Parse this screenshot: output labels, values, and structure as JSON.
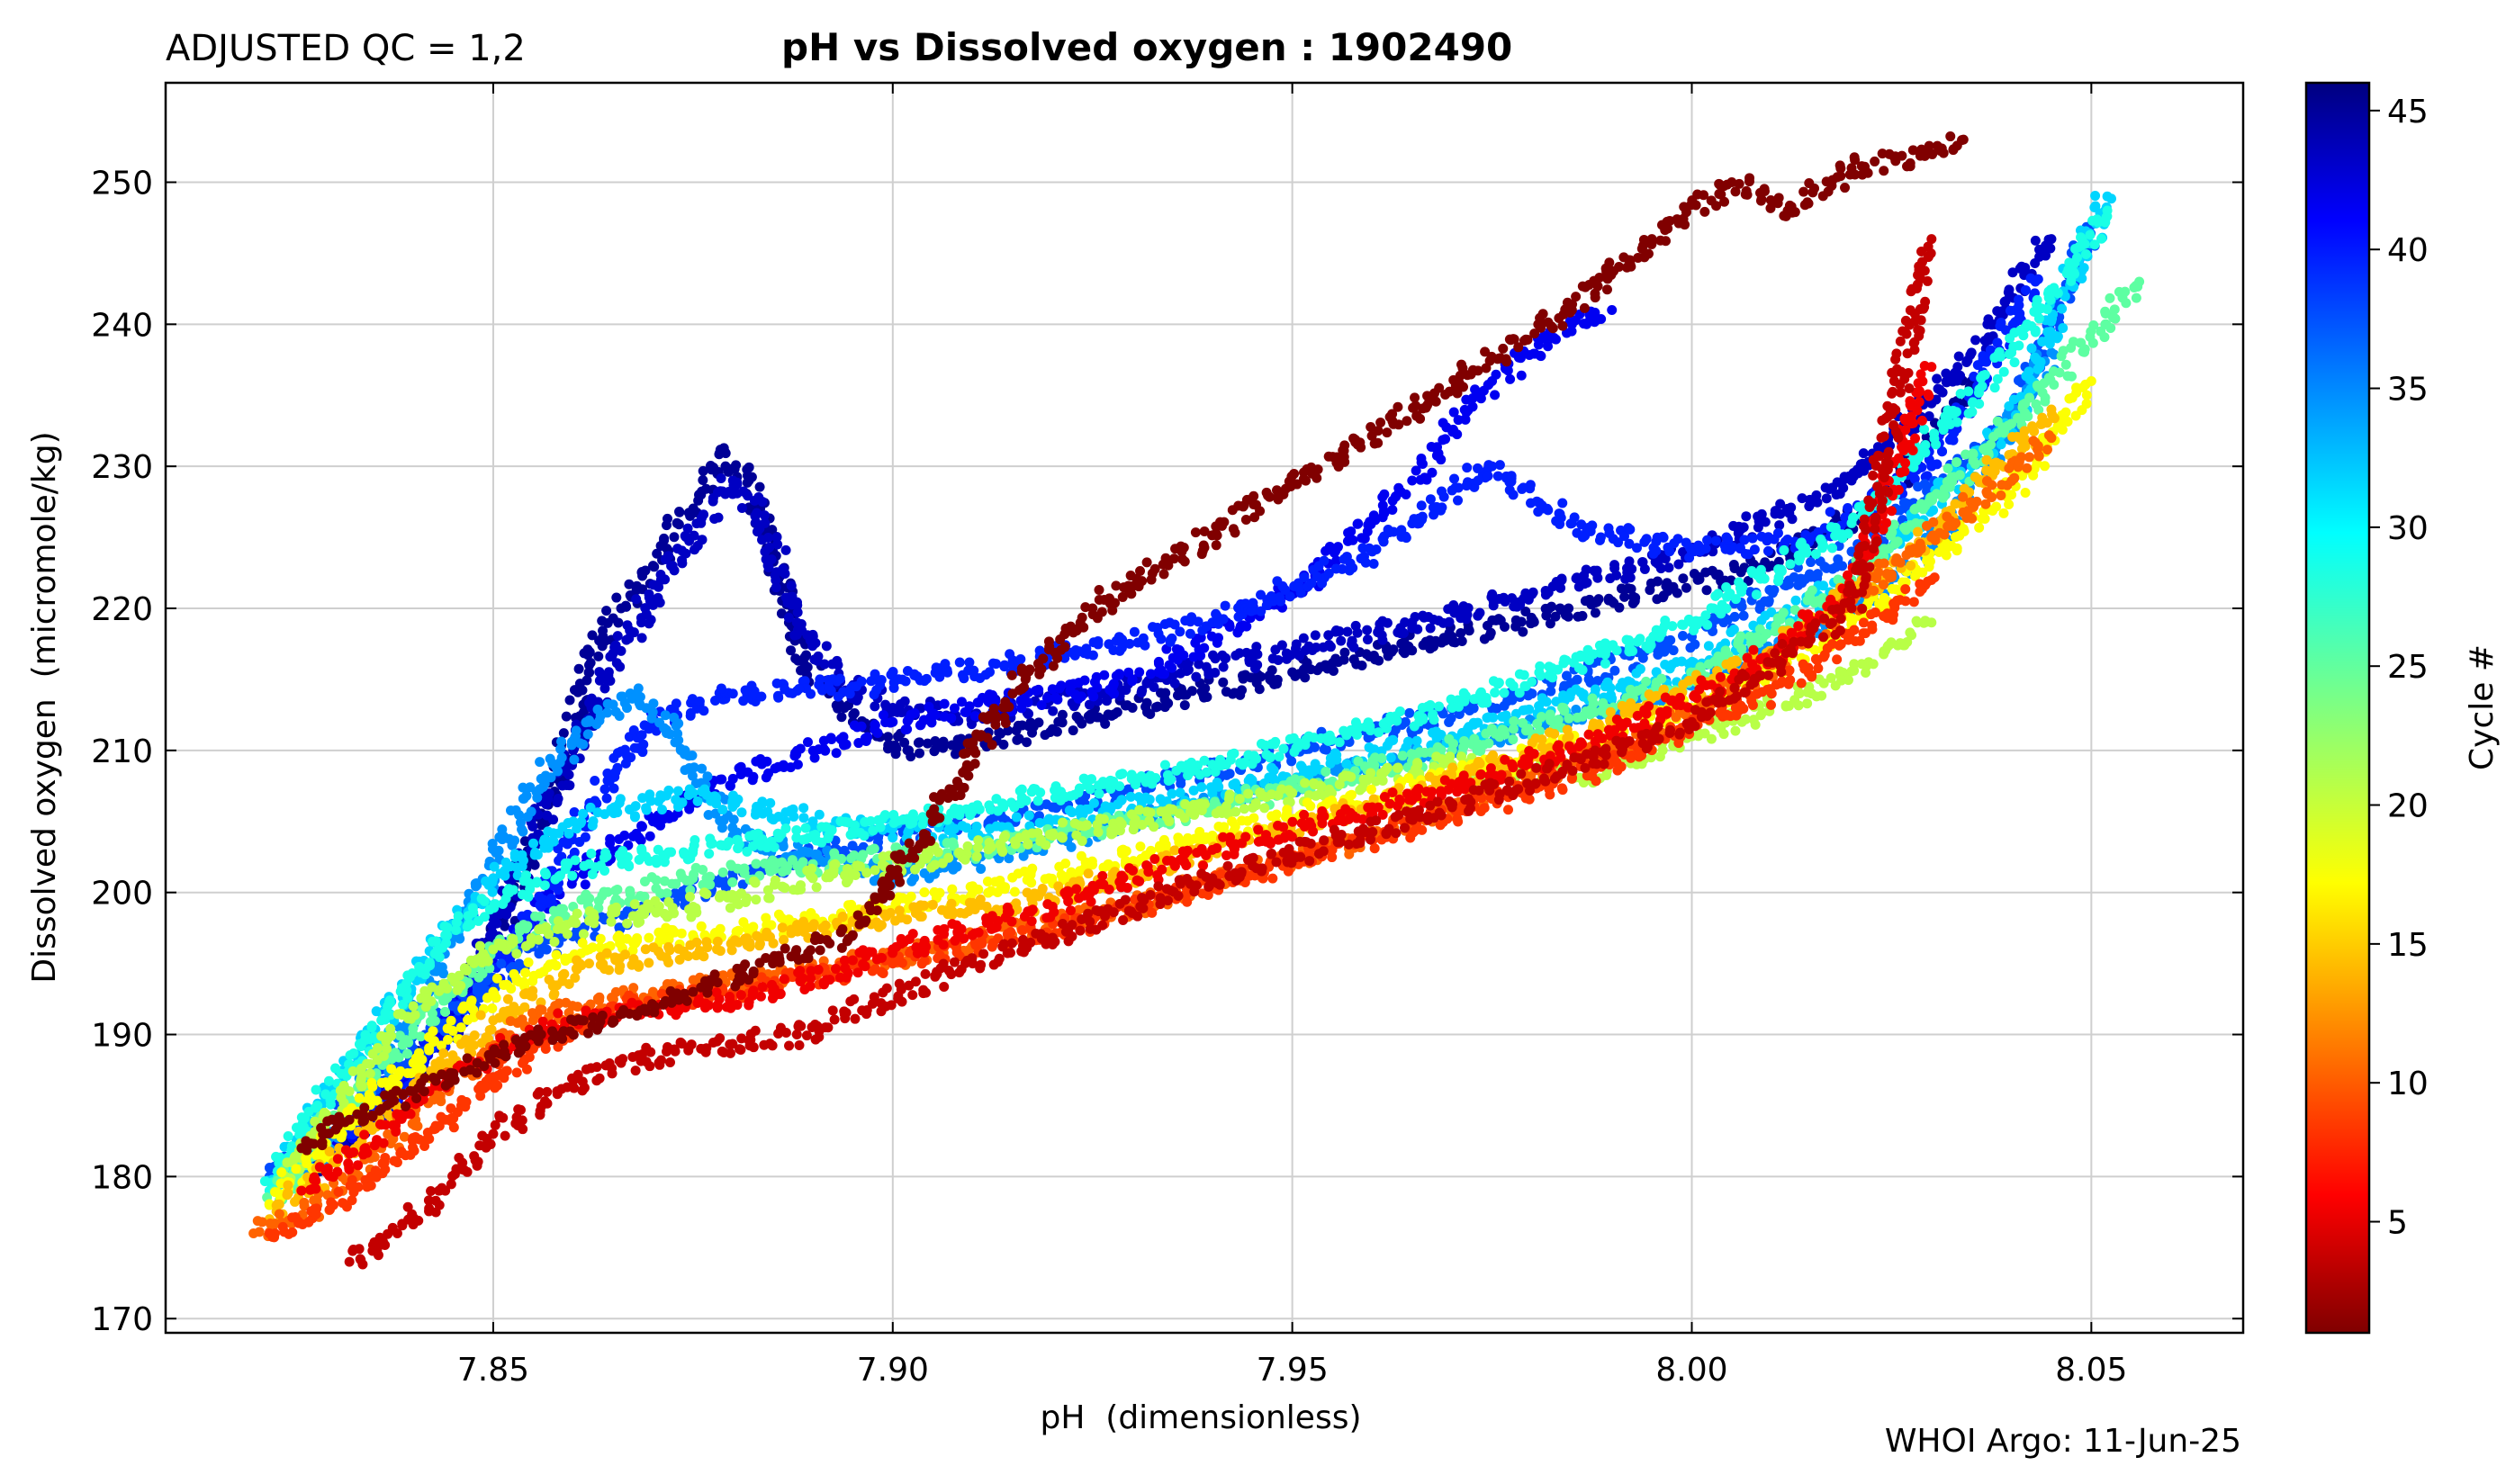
{
  "header": {
    "qc_label": "ADJUSTED QC = 1,2",
    "title": "pH vs Dissolved oxygen : 1902490"
  },
  "footer": {
    "credit": "WHOI Argo: 11-Jun-25"
  },
  "chart_data": {
    "type": "scatter",
    "title": "pH vs Dissolved oxygen : 1902490",
    "xlabel": "pH  (dimensionless)",
    "ylabel": "Dissolved oxygen  (micromole/kg)",
    "xlim": [
      7.809,
      8.069
    ],
    "ylim": [
      169,
      257
    ],
    "xticks": [
      7.85,
      7.9,
      7.95,
      8.0,
      8.05
    ],
    "xtick_labels": [
      "7.85",
      "7.90",
      "7.95",
      "8.00",
      "8.05"
    ],
    "yticks": [
      170,
      180,
      190,
      200,
      210,
      220,
      230,
      240,
      250
    ],
    "ytick_labels": [
      "170",
      "180",
      "190",
      "200",
      "210",
      "220",
      "230",
      "240",
      "250"
    ],
    "grid": true,
    "colorbar": {
      "label": "Cycle #",
      "colormap": "jet",
      "range": [
        1,
        46
      ],
      "ticks": [
        5,
        10,
        15,
        20,
        25,
        30,
        35,
        40,
        45
      ],
      "tick_labels": [
        "5",
        "10",
        "15",
        "20",
        "25",
        "30",
        "35",
        "40",
        "45"
      ]
    },
    "color_note": "point color encodes profile cycle number; values approximate, sampled along the visible profile traces",
    "series": [
      {
        "cycle": 45,
        "x": [
          7.824,
          7.828,
          7.833,
          7.838,
          7.845,
          7.852,
          7.858,
          7.862,
          7.866,
          7.87,
          7.873,
          7.876,
          7.879,
          7.882,
          7.885,
          7.887,
          7.889,
          7.892,
          7.895,
          7.898,
          7.902,
          7.91,
          7.92,
          7.93,
          7.95,
          7.97,
          7.99,
          8.01,
          8.025,
          8.035
        ],
        "y": [
          180,
          181,
          183,
          186,
          191,
          199,
          208,
          216,
          220,
          223,
          226,
          228,
          231,
          229,
          224,
          219,
          216,
          214,
          212,
          211,
          210,
          210.5,
          211.5,
          213,
          215.5,
          218,
          220.5,
          223,
          228,
          236
        ]
      },
      {
        "cycle": 43,
        "x": [
          7.826,
          7.832,
          7.838,
          7.845,
          7.852,
          7.86,
          7.866,
          7.871,
          7.876,
          7.88,
          7.884,
          7.888,
          7.893,
          7.9,
          7.91,
          7.925,
          7.945,
          7.965,
          7.98,
          8.0,
          8.02,
          8.035,
          8.045
        ],
        "y": [
          181,
          183,
          186,
          191,
          200,
          210,
          217,
          222,
          226,
          229,
          226,
          219,
          215,
          213,
          212.5,
          214,
          216.5,
          219,
          221,
          224,
          229,
          238,
          246
        ]
      },
      {
        "cycle": 41,
        "x": [
          7.83,
          7.836,
          7.842,
          7.85,
          7.86,
          7.87,
          7.88,
          7.9,
          7.93,
          7.95,
          7.965,
          7.975,
          7.985,
          7.99
        ],
        "y": [
          182,
          185,
          189,
          195,
          201,
          205,
          208,
          212,
          215,
          221,
          229,
          236,
          240,
          241
        ]
      },
      {
        "cycle": 39,
        "x": [
          7.832,
          7.84,
          7.848,
          7.856,
          7.862,
          7.87,
          7.88,
          7.895,
          7.915,
          7.94,
          7.96,
          7.975,
          7.985,
          8.0,
          8.015,
          8.03,
          8.043
        ],
        "y": [
          183,
          187,
          193,
          199,
          206,
          212,
          214,
          214.5,
          216,
          219,
          224,
          230,
          226,
          224,
          225,
          230,
          243
        ]
      },
      {
        "cycle": 37,
        "x": [
          7.822,
          7.83,
          7.84,
          7.85,
          7.86,
          7.87,
          7.88,
          7.9,
          7.92,
          7.95,
          7.98,
          8.0,
          8.02,
          8.04,
          8.05
        ],
        "y": [
          180,
          184,
          189,
          194,
          197,
          199,
          201,
          204,
          206,
          210,
          214,
          218,
          224,
          233,
          247
        ]
      },
      {
        "cycle": 34,
        "x": [
          7.826,
          7.834,
          7.842,
          7.85,
          7.856,
          7.862,
          7.868,
          7.874,
          7.88,
          7.9,
          7.93,
          7.96,
          7.99,
          8.01,
          8.03,
          8.045
        ],
        "y": [
          180,
          186,
          193,
          202,
          208,
          212,
          214,
          210,
          204,
          201,
          205,
          209,
          213,
          217,
          224,
          238
        ]
      },
      {
        "cycle": 31,
        "x": [
          7.822,
          7.83,
          7.84,
          7.85,
          7.86,
          7.875,
          7.89,
          7.91,
          7.94,
          7.97,
          8.0,
          8.02,
          8.04,
          8.052
        ],
        "y": [
          179,
          186,
          194,
          201,
          205,
          207,
          205,
          204,
          207,
          211,
          216,
          222,
          233,
          249
        ]
      },
      {
        "cycle": 28,
        "x": [
          7.822,
          7.828,
          7.836,
          7.844,
          7.852,
          7.862,
          7.875,
          7.89,
          7.91,
          7.94,
          7.97,
          8.0,
          8.02,
          8.04,
          8.052
        ],
        "y": [
          179,
          185,
          191,
          197,
          200,
          202,
          203,
          204,
          206,
          209,
          213,
          219,
          226,
          238,
          248
        ]
      },
      {
        "cycle": 25,
        "x": [
          7.822,
          7.83,
          7.84,
          7.85,
          7.86,
          7.875,
          7.89,
          7.91,
          7.94,
          7.97,
          8.0,
          8.02,
          8.04,
          8.056
        ],
        "y": [
          178,
          184,
          190,
          196,
          199,
          201,
          202,
          203,
          206,
          210,
          215,
          222,
          233,
          243
        ]
      },
      {
        "cycle": 21,
        "x": [
          7.824,
          7.832,
          7.84,
          7.85,
          7.862,
          7.875,
          7.89,
          7.92,
          7.95,
          7.97,
          7.985,
          8.0,
          8.015,
          8.03
        ],
        "y": [
          180,
          186,
          192,
          196,
          198,
          199,
          201,
          204,
          207,
          209,
          208,
          211,
          214,
          219
        ]
      },
      {
        "cycle": 18,
        "x": [
          7.822,
          7.83,
          7.84,
          7.85,
          7.862,
          7.875,
          7.89,
          7.91,
          7.94,
          7.97,
          8.0,
          8.02,
          8.04,
          8.05
        ],
        "y": [
          178,
          183,
          188,
          193,
          196,
          197,
          198,
          200,
          204,
          208,
          213,
          219,
          228,
          236
        ]
      },
      {
        "cycle": 15,
        "x": [
          7.822,
          7.83,
          7.84,
          7.85,
          7.862,
          7.878,
          7.895,
          7.915,
          7.94,
          7.965,
          7.99,
          8.01,
          8.03,
          8.045
        ],
        "y": [
          177,
          181,
          186,
          191,
          195,
          196,
          198,
          199,
          203,
          207,
          212,
          217,
          225,
          234
        ]
      },
      {
        "cycle": 11,
        "x": [
          7.82,
          7.828,
          7.836,
          7.845,
          7.855,
          7.87,
          7.885,
          7.905,
          7.93,
          7.96,
          7.99,
          8.01,
          8.03,
          8.045
        ],
        "y": [
          176,
          178,
          182,
          187,
          191,
          193,
          194,
          196,
          199,
          204,
          210,
          216,
          225,
          232
        ]
      },
      {
        "cycle": 9,
        "x": [
          7.822,
          7.83,
          7.838,
          7.846,
          7.855,
          7.865,
          7.88,
          7.9,
          7.925,
          7.955,
          7.985,
          8.01,
          8.03
        ],
        "y": [
          176,
          178,
          181,
          185,
          189,
          192,
          193,
          195,
          198,
          203,
          208,
          214,
          222
        ]
      },
      {
        "cycle": 6,
        "x": [
          7.826,
          7.834,
          7.842,
          7.85,
          7.86,
          7.872,
          7.885,
          7.9,
          7.92,
          7.94,
          7.96,
          7.985,
          8.005,
          8.02,
          8.03
        ],
        "y": [
          179,
          182,
          186,
          189,
          191,
          192,
          193,
          196,
          199,
          203,
          206,
          210,
          215,
          221,
          237
        ]
      },
      {
        "cycle": 4,
        "x": [
          7.832,
          7.838,
          7.844,
          7.85,
          7.858,
          7.866,
          7.876,
          7.888,
          7.91,
          7.94,
          7.97,
          8.0,
          8.02,
          8.03
        ],
        "y": [
          174,
          176,
          179,
          183,
          186,
          188,
          189,
          190,
          195,
          201,
          206,
          212,
          220,
          246
        ]
      },
      {
        "cycle": 1,
        "x": [
          7.826,
          7.832,
          7.84,
          7.848,
          7.856,
          7.865,
          7.875,
          7.885,
          7.895,
          7.905,
          7.915,
          7.925,
          7.985,
          7.995,
          8.005,
          8.012,
          8.02,
          8.03,
          8.034
        ],
        "y": [
          182,
          184,
          186,
          188,
          190,
          191,
          193,
          195,
          197,
          205,
          214,
          220,
          241,
          246,
          250,
          248,
          251,
          252,
          253
        ]
      }
    ]
  }
}
